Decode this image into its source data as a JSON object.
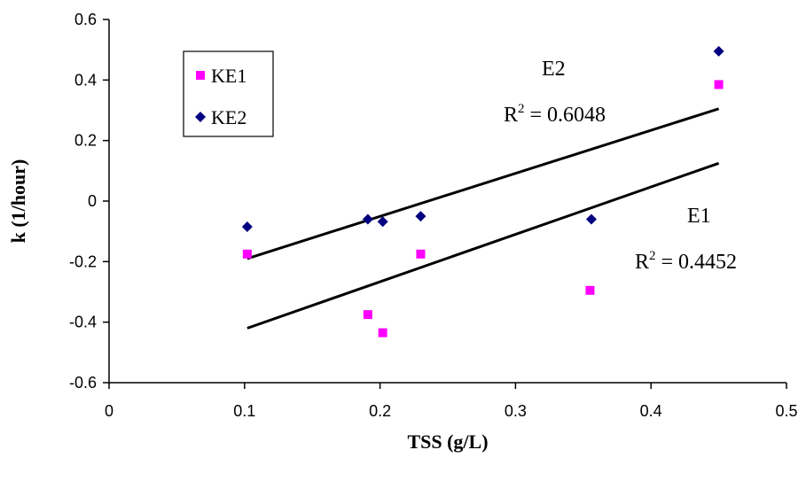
{
  "chart_data": {
    "type": "scatter",
    "xlabel": "TSS (g/L)",
    "ylabel": "k (1/hour)",
    "xlim": [
      0,
      0.5
    ],
    "ylim": [
      -0.6,
      0.6
    ],
    "x_ticks": [
      "0",
      "0.1",
      "0.2",
      "0.3",
      "0.4",
      "0.5"
    ],
    "y_ticks": [
      "0.6",
      "0.4",
      "0.2",
      "0",
      "-0.2",
      "-0.4",
      "-0.6"
    ],
    "x_tick_values": [
      0,
      0.1,
      0.2,
      0.3,
      0.4,
      0.5
    ],
    "y_tick_values": [
      0.6,
      0.4,
      0.2,
      0,
      -0.2,
      -0.4,
      -0.6
    ],
    "legend_position": "top-left",
    "grid": false,
    "series": [
      {
        "name": "KE1",
        "marker": "square",
        "color": "#ff00ff",
        "points": [
          {
            "x": 0.102,
            "y": -0.175
          },
          {
            "x": 0.191,
            "y": -0.375
          },
          {
            "x": 0.202,
            "y": -0.435
          },
          {
            "x": 0.23,
            "y": -0.175
          },
          {
            "x": 0.355,
            "y": -0.295
          },
          {
            "x": 0.45,
            "y": 0.385
          }
        ]
      },
      {
        "name": "KE2",
        "marker": "diamond",
        "color": "#000080",
        "points": [
          {
            "x": 0.102,
            "y": -0.085
          },
          {
            "x": 0.191,
            "y": -0.06
          },
          {
            "x": 0.202,
            "y": -0.068
          },
          {
            "x": 0.23,
            "y": -0.05
          },
          {
            "x": 0.356,
            "y": -0.06
          },
          {
            "x": 0.45,
            "y": 0.495
          }
        ]
      }
    ],
    "trendlines": [
      {
        "label": "E2",
        "r2": "0.6048",
        "x": [
          0.102,
          0.45
        ],
        "y": [
          -0.19,
          0.305
        ]
      },
      {
        "label": "E1",
        "r2": "0.4452",
        "x": [
          0.102,
          0.45
        ],
        "y": [
          -0.42,
          0.125
        ]
      }
    ],
    "annotations": {
      "e2_name": "E2",
      "e2_r2_prefix": "R",
      "e2_r2_sup": "2",
      "e2_r2_value": " = 0.6048",
      "e1_name": "E1",
      "e1_r2_prefix": "R",
      "e1_r2_sup": "2",
      "e1_r2_value": " = 0.4452"
    }
  }
}
